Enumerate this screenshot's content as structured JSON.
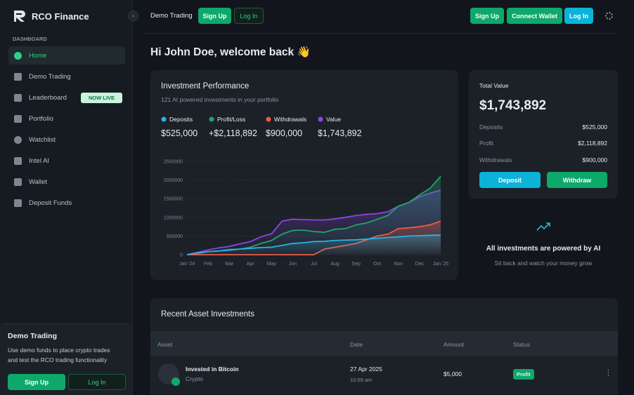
{
  "brand": "RCO Finance",
  "sidebar": {
    "section": "DASHBOARD",
    "nav": [
      "Home",
      "Demo Trading",
      "Leaderboard",
      "Portfolio",
      "Watchlist",
      "Intel AI",
      "Wallet",
      "Deposit Funds"
    ],
    "badge": "NOW LIVE",
    "demo": {
      "title": "Demo Trading",
      "text_1": "Use demo funds to place crypto trades",
      "text_2": "and test the RCO trading functionality",
      "sign_up": "Sign Up",
      "log_in": "Log In"
    }
  },
  "topbar": {
    "label": "Demo Trading",
    "sign_up": "Sign Up",
    "log_in": "Log In",
    "right_sign_up": "Sign Up",
    "connect_wallet": "Connect Wallet",
    "right_log_in": "Log In"
  },
  "greeting": "Hi John Doe, welcome back 👋",
  "performance": {
    "title": "Investment Performance",
    "subtitle": "121 AI powered investments in your portfolio",
    "totals": [
      "$525,000",
      "+$2,118,892",
      "$900,000",
      "$1,743,892"
    ]
  },
  "chart_data": {
    "type": "line",
    "categories": [
      "Jan '24",
      null,
      "Feb",
      null,
      "Mar",
      null,
      "Apr",
      null,
      "May",
      null,
      "Jun",
      null,
      "Jul",
      null,
      "Aug",
      null,
      "Sep",
      null,
      "Oct",
      null,
      "Nov",
      null,
      "Dec",
      null,
      "Jan '25"
    ],
    "series": [
      {
        "name": "Deposits",
        "color": "#2bb3e0",
        "values": [
          0,
          50000,
          80000,
          100000,
          120000,
          150000,
          170000,
          190000,
          200000,
          250000,
          300000,
          320000,
          350000,
          360000,
          380000,
          390000,
          400000,
          420000,
          440000,
          460000,
          480000,
          500000,
          510000,
          520000,
          525000
        ]
      },
      {
        "name": "Profit/Loss",
        "color": "#21a36a",
        "values": [
          0,
          30000,
          80000,
          100000,
          140000,
          150000,
          200000,
          300000,
          380000,
          550000,
          650000,
          660000,
          620000,
          600000,
          680000,
          700000,
          800000,
          850000,
          950000,
          1050000,
          1300000,
          1400000,
          1600000,
          1780000,
          2100000
        ]
      },
      {
        "name": "Withdrawals",
        "color": "#ef5a45",
        "values": [
          0,
          0,
          0,
          0,
          0,
          0,
          0,
          0,
          0,
          0,
          0,
          0,
          0,
          150000,
          200000,
          250000,
          300000,
          400000,
          500000,
          550000,
          700000,
          720000,
          750000,
          800000,
          900000
        ]
      },
      {
        "name": "Value",
        "color": "#8b45e8",
        "values": [
          0,
          60000,
          130000,
          180000,
          220000,
          290000,
          350000,
          480000,
          560000,
          900000,
          950000,
          940000,
          930000,
          930000,
          960000,
          1000000,
          1050000,
          1080000,
          1100000,
          1150000,
          1300000,
          1400000,
          1550000,
          1650000,
          1730000
        ]
      }
    ],
    "ylim": [
      0,
      2500000
    ],
    "yticks": [
      0,
      500000,
      1000000,
      1500000,
      2000000,
      2500000
    ],
    "grid": true
  },
  "total": {
    "label": "Total Value",
    "value": "$1,743,892",
    "rows": [
      [
        "Deposits",
        "$525,000"
      ],
      [
        "Profit",
        "$2,118,892"
      ],
      [
        "Withdrawals",
        "$900,000"
      ]
    ],
    "deposit": "Deposit",
    "withdraw": "Withdraw"
  },
  "ai": {
    "title": "All investments are powered by AI",
    "subtitle": "Sit back and watch your money grow"
  },
  "table": {
    "title": "Recent Asset Investments",
    "headers": [
      "Asset",
      "Date",
      "Amount",
      "Status"
    ],
    "rows": [
      {
        "asset": "Invested in Bitcoin",
        "type": "Crypto",
        "date": "27 Apr 2025",
        "time": "10:59 am",
        "amount": "$5,000",
        "status": "Profit"
      }
    ]
  }
}
